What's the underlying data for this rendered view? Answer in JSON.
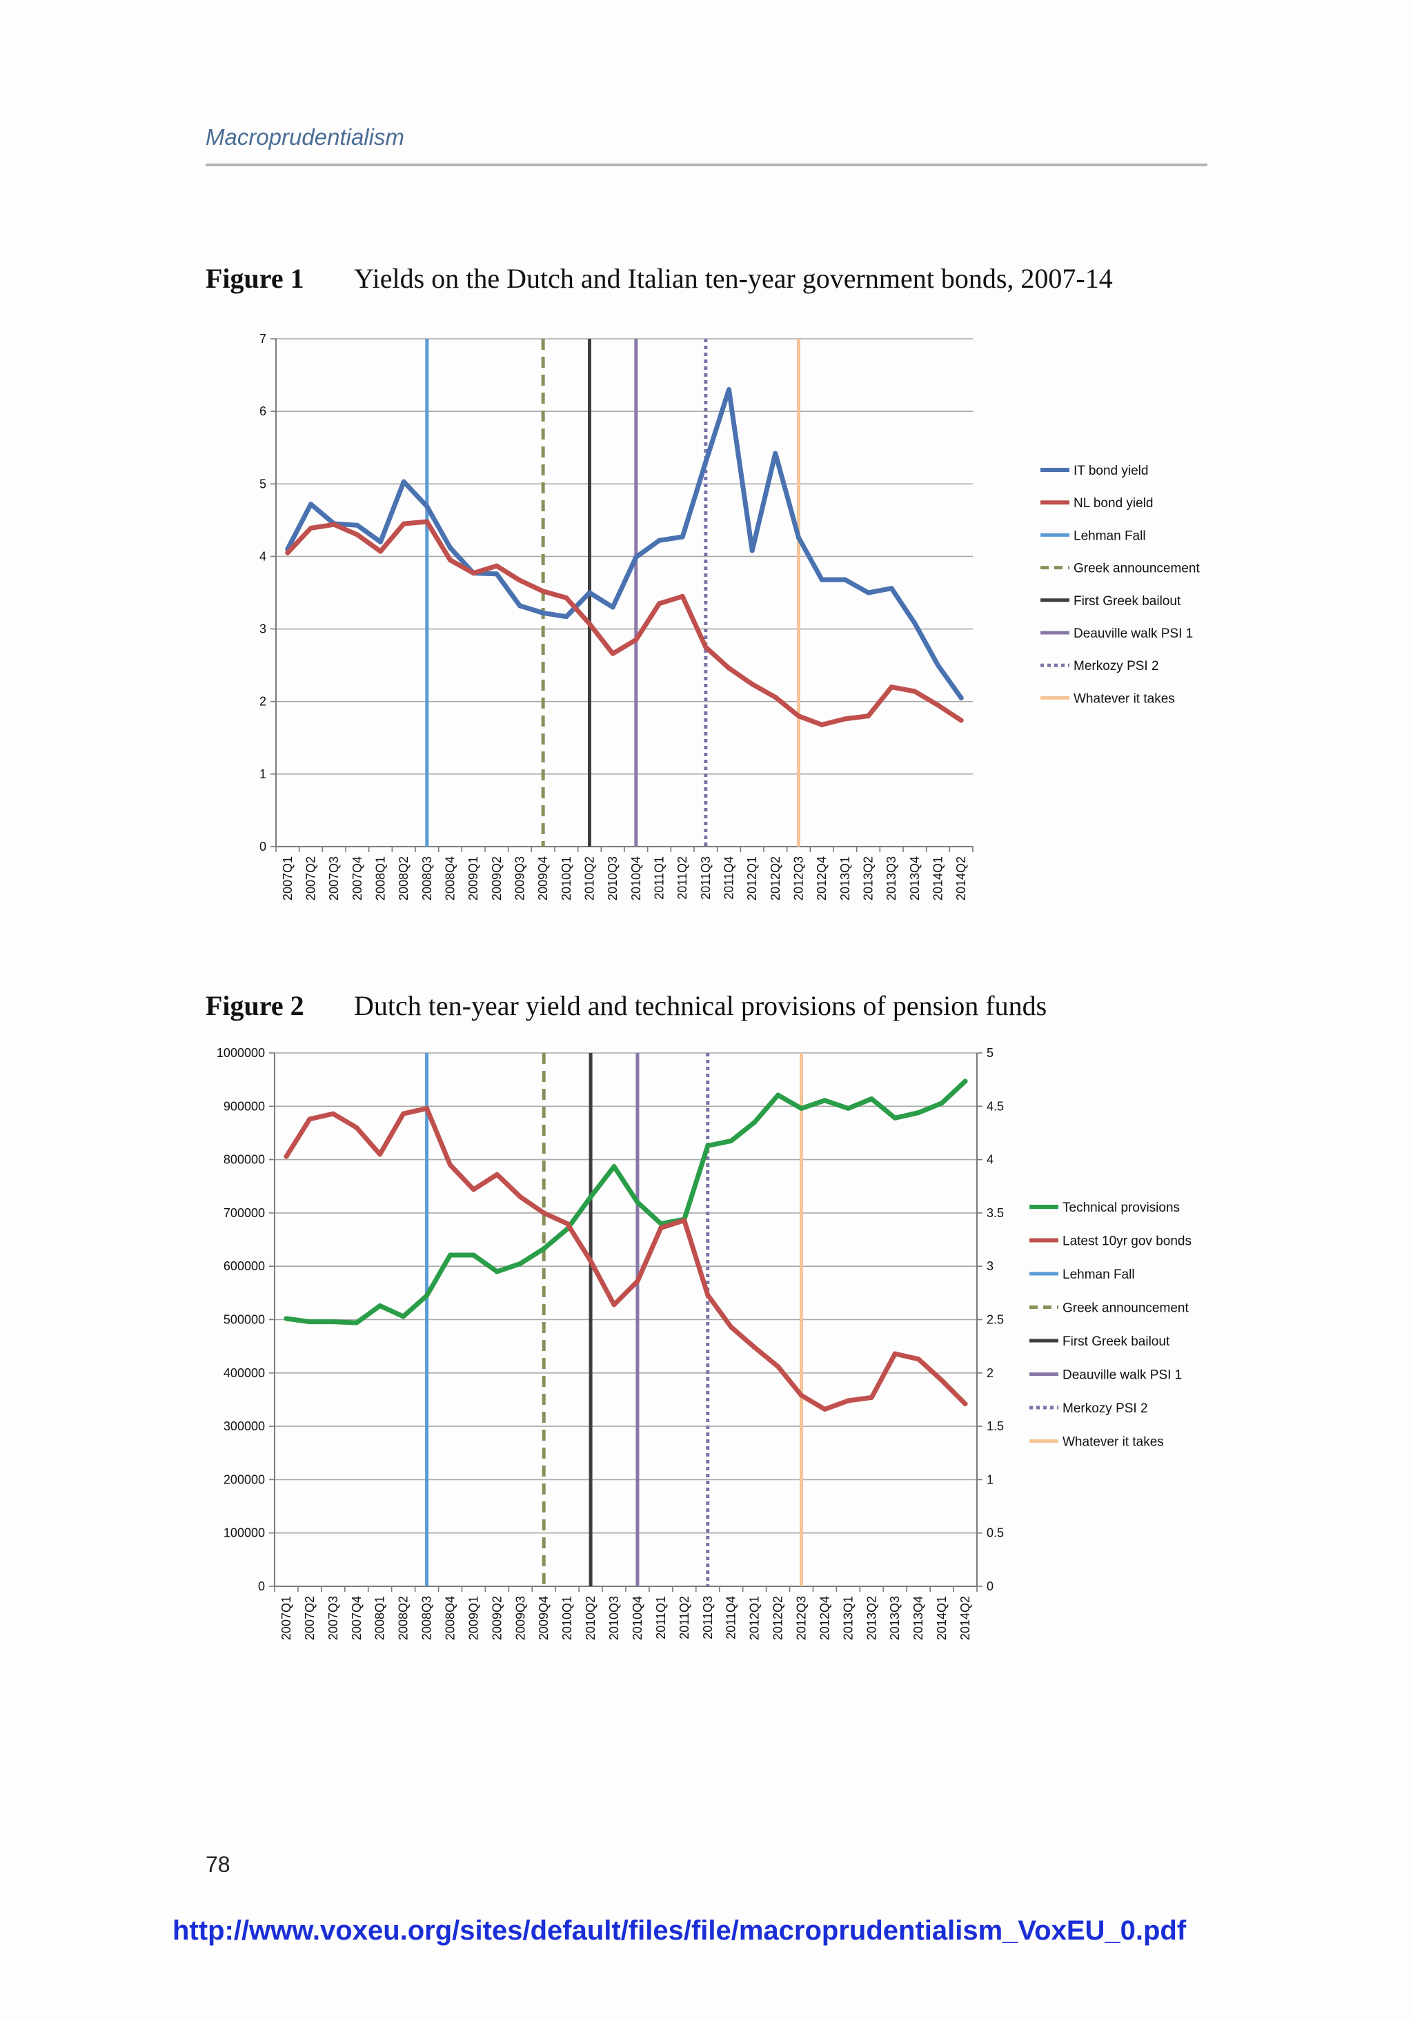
{
  "header": {
    "running_title": "Macroprudentialism"
  },
  "page_number": "78",
  "source_url": "http://www.voxeu.org/sites/default/files/file/macroprudentialism_VoxEU_0.pdf",
  "figures": [
    {
      "number": "Figure 1",
      "title": "Yields on the Dutch and Italian ten-year government bonds, 2007-14"
    },
    {
      "number": "Figure 2",
      "title": "Dutch ten-year yield and technical provisions of pension funds"
    }
  ],
  "chart_data": [
    {
      "type": "line",
      "categories": [
        "2007Q1",
        "2007Q2",
        "2007Q3",
        "2007Q4",
        "2008Q1",
        "2008Q2",
        "2008Q3",
        "2008Q4",
        "2009Q1",
        "2009Q2",
        "2009Q3",
        "2009Q4",
        "2010Q1",
        "2010Q2",
        "2010Q3",
        "2010Q4",
        "2011Q1",
        "2011Q2",
        "2011Q3",
        "2011Q4",
        "2012Q1",
        "2012Q2",
        "2012Q3",
        "2012Q4",
        "2013Q1",
        "2013Q2",
        "2013Q3",
        "2013Q4",
        "2014Q1",
        "2014Q2"
      ],
      "ylim": [
        0,
        7
      ],
      "yticks": [
        "0",
        "1",
        "2",
        "3",
        "4",
        "5",
        "6",
        "7"
      ],
      "grid": true,
      "legend_position": "right",
      "series": [
        {
          "name": "IT bond yield",
          "color": "#4a72b0",
          "values": [
            4.1,
            4.72,
            4.45,
            4.43,
            4.2,
            5.03,
            4.69,
            4.12,
            3.77,
            3.76,
            3.32,
            3.22,
            3.17,
            3.5,
            3.3,
            3.99,
            4.22,
            4.27,
            5.3,
            6.3,
            4.08,
            5.42,
            4.26,
            3.68,
            3.68,
            3.5,
            3.56,
            3.08,
            2.5,
            2.05
          ]
        },
        {
          "name": "NL bond yield",
          "color": "#c0504d",
          "values": [
            4.05,
            4.39,
            4.44,
            4.3,
            4.07,
            4.45,
            4.48,
            3.95,
            3.77,
            3.87,
            3.67,
            3.52,
            3.43,
            3.07,
            2.66,
            2.85,
            3.35,
            3.45,
            2.75,
            2.46,
            2.24,
            2.06,
            1.8,
            1.68,
            1.76,
            1.8,
            2.2,
            2.14,
            1.95,
            1.74
          ]
        }
      ],
      "event_lines": [
        {
          "name": "Lehman Fall",
          "at": "2008Q3",
          "color": "#5b9bd5",
          "style": "solid"
        },
        {
          "name": "Greek announcement",
          "at": "2009Q4",
          "color": "#8a8f5a",
          "style": "dashed"
        },
        {
          "name": "First Greek bailout",
          "at": "2010Q2",
          "color": "#3f3f3f",
          "style": "solid"
        },
        {
          "name": "Deauville walk PSI 1",
          "at": "2010Q4",
          "color": "#8878a8",
          "style": "solid"
        },
        {
          "name": "Merkozy PSI 2",
          "at": "2011Q3",
          "color": "#7a74a8",
          "style": "dotted"
        },
        {
          "name": "Whatever it takes",
          "at": "2012Q3",
          "color": "#f5c497",
          "style": "solid"
        }
      ]
    },
    {
      "type": "line",
      "categories": [
        "2007Q1",
        "2007Q2",
        "2007Q3",
        "2007Q4",
        "2008Q1",
        "2008Q2",
        "2008Q3",
        "2008Q4",
        "2009Q1",
        "2009Q2",
        "2009Q3",
        "2009Q4",
        "2010Q1",
        "2010Q2",
        "2010Q3",
        "2010Q4",
        "2011Q1",
        "2011Q2",
        "2011Q3",
        "2011Q4",
        "2012Q1",
        "2012Q2",
        "2012Q3",
        "2012Q4",
        "2013Q1",
        "2013Q2",
        "2013Q3",
        "2013Q4",
        "2014Q1",
        "2014Q2"
      ],
      "ylim_left": [
        0,
        1000000
      ],
      "ylim_right": [
        0,
        5
      ],
      "yticks_left": [
        "0",
        "100000",
        "200000",
        "300000",
        "400000",
        "500000",
        "600000",
        "700000",
        "800000",
        "900000",
        "1000000"
      ],
      "yticks_right": [
        "0",
        "0.5",
        "1",
        "1.5",
        "2",
        "2.5",
        "3",
        "3.5",
        "4",
        "4.5",
        "5"
      ],
      "grid": true,
      "legend_position": "right",
      "series": [
        {
          "name": "Technical provisions",
          "axis": "left",
          "color": "#2a9d48",
          "values": [
            502000,
            496000,
            496000,
            494000,
            526000,
            506000,
            545000,
            621000,
            621000,
            590000,
            605000,
            633000,
            670000,
            730000,
            787000,
            720000,
            680000,
            688000,
            826000,
            835000,
            870000,
            921000,
            896000,
            911000,
            896000,
            914000,
            878000,
            888000,
            906000,
            947000
          ]
        },
        {
          "name": "Latest 10yr gov bonds",
          "axis": "right",
          "color": "#c0504d",
          "values": [
            4.03,
            4.38,
            4.43,
            4.3,
            4.05,
            4.43,
            4.48,
            3.95,
            3.72,
            3.86,
            3.65,
            3.5,
            3.4,
            3.05,
            2.64,
            2.86,
            3.36,
            3.43,
            2.73,
            2.43,
            2.24,
            2.06,
            1.79,
            1.66,
            1.74,
            1.77,
            2.18,
            2.13,
            1.93,
            1.71
          ]
        }
      ],
      "event_lines": [
        {
          "name": "Lehman Fall",
          "at": "2008Q3",
          "color": "#5b9bd5",
          "style": "solid"
        },
        {
          "name": "Greek announcement",
          "at": "2009Q4",
          "color": "#8a8f5a",
          "style": "dashed"
        },
        {
          "name": "First Greek bailout",
          "at": "2010Q2",
          "color": "#3f3f3f",
          "style": "solid"
        },
        {
          "name": "Deauville walk PSI 1",
          "at": "2010Q4",
          "color": "#8878a8",
          "style": "solid"
        },
        {
          "name": "Merkozy PSI 2",
          "at": "2011Q3",
          "color": "#7a74a8",
          "style": "dotted"
        },
        {
          "name": "Whatever it takes",
          "at": "2012Q3",
          "color": "#f5c497",
          "style": "solid"
        }
      ]
    }
  ]
}
